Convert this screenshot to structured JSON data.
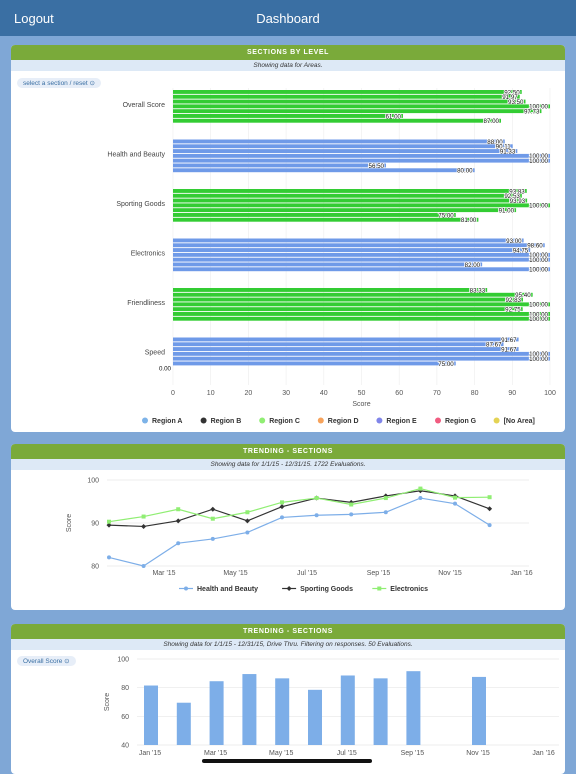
{
  "topbar": {
    "logout_label": "Logout",
    "title": "Dashboard"
  },
  "card1": {
    "header": "SECTIONS BY LEVEL",
    "subheader": "Showing data for Areas.",
    "select_label": "select a section / reset ⊙"
  },
  "card2": {
    "header": "TRENDING - SECTIONS",
    "subheader": "Showing data for 1/1/15 - 12/31/15. 1722 Evaluations."
  },
  "card3": {
    "header": "TRENDING - SECTIONS",
    "subheader": "Showing data for 1/1/15 - 12/31/15, Drive Thru. Filtering on responses. 50 Evaluations.",
    "select_label": "Overall Score ⊙"
  },
  "colors": {
    "green": "#33cc33",
    "blue": "#6f9ae8",
    "black": "#333333",
    "light_green": "#90ee73",
    "light_blue": "#7daee8"
  },
  "chart_data": [
    {
      "type": "bar",
      "orientation": "horizontal",
      "xlabel": "Score",
      "xlim": [
        0,
        100
      ],
      "xticks": [
        0,
        10,
        20,
        30,
        40,
        50,
        60,
        70,
        80,
        90,
        100
      ],
      "groups": [
        {
          "label": "Overall Score",
          "color": "#33cc33",
          "values": [
            92.5,
            91.97,
            93.5,
            100,
            97.73,
            61.0,
            87.0
          ],
          "labels": [
            "92.50",
            "91.97",
            "93.50",
            "100.00",
            "97.73",
            "61.00",
            "87.00"
          ]
        },
        {
          "label": "Health and Beauty",
          "color": "#6f9ae8",
          "values": [
            88.0,
            90.11,
            91.33,
            100,
            100,
            56.5,
            80.0
          ],
          "labels": [
            "88.00",
            "90.11",
            "91.33",
            "100.00",
            "100.00",
            "56.50",
            "80.00"
          ]
        },
        {
          "label": "Sporting Goods",
          "color": "#33cc33",
          "values": [
            93.83,
            92.53,
            93.93,
            100,
            91.0,
            75.0,
            81.0
          ],
          "labels": [
            "93.83",
            "92.53",
            "93.93",
            "100.00",
            "91.00",
            "75.00",
            "81.00"
          ]
        },
        {
          "label": "Electronics",
          "color": "#6f9ae8",
          "values": [
            93.0,
            98.6,
            94.75,
            100,
            100,
            82.0,
            100
          ],
          "labels": [
            "93.00",
            "98.60",
            "94.75",
            "100.00",
            "100.00",
            "82.00",
            "100.00"
          ]
        },
        {
          "label": "Friendliness",
          "color": "#33cc33",
          "values": [
            83.33,
            95.4,
            92.83,
            100,
            92.75,
            100,
            100
          ],
          "labels": [
            "83.33",
            "95.40",
            "92.83",
            "100.00",
            "92.75",
            "100.00",
            "100.00"
          ]
        },
        {
          "label": "Speed",
          "color": "#6f9ae8",
          "values": [
            91.67,
            87.67,
            91.67,
            100,
            100,
            75.0,
            0.0
          ],
          "labels": [
            "91.67",
            "87.67",
            "91.67",
            "100.00",
            "100.00",
            "75.00",
            "0.00"
          ]
        }
      ],
      "legend": [
        {
          "name": "Region A",
          "color": "#7db3e8"
        },
        {
          "name": "Region B",
          "color": "#333333"
        },
        {
          "name": "Region C",
          "color": "#90ee73"
        },
        {
          "name": "Region D",
          "color": "#f7a35c"
        },
        {
          "name": "Region E",
          "color": "#8085e9"
        },
        {
          "name": "Region G",
          "color": "#f15c80"
        },
        {
          "name": "[No Area]",
          "color": "#e4d354"
        }
      ]
    },
    {
      "type": "line",
      "ylabel": "Score",
      "ylim": [
        80,
        100
      ],
      "yticks": [
        80,
        90,
        100
      ],
      "xticks": [
        "Mar '15",
        "May '15",
        "Jul '15",
        "Sep '15",
        "Nov '15",
        "Jan '16"
      ],
      "series": [
        {
          "name": "Health and Beauty",
          "color": "#7daee8",
          "marker": "circle",
          "values": [
            82,
            80,
            85.3,
            86.3,
            87.8,
            91.3,
            91.8,
            92,
            92.5,
            95.8,
            94.5,
            89.5
          ]
        },
        {
          "name": "Sporting Goods",
          "color": "#333333",
          "marker": "diamond",
          "values": [
            89.5,
            89.2,
            90.5,
            93.2,
            90.5,
            93.8,
            95.8,
            94.8,
            96.3,
            97.5,
            96.3,
            93.3
          ]
        },
        {
          "name": "Electronics",
          "color": "#90ee73",
          "marker": "square",
          "values": [
            90.3,
            91.5,
            93.2,
            91,
            92.5,
            94.8,
            95.8,
            94.3,
            95.8,
            98,
            95.9,
            96
          ]
        }
      ]
    },
    {
      "type": "bar",
      "ylabel": "Score",
      "ylim": [
        40,
        100
      ],
      "yticks": [
        40,
        60,
        80,
        100
      ],
      "xticks": [
        "Jan '15",
        "Mar '15",
        "May '15",
        "Jul '15",
        "Sep '15",
        "Nov '15",
        "Jan '16"
      ],
      "values": [
        81.5,
        69.5,
        84.5,
        89.5,
        86.5,
        78.5,
        88.5,
        86.5,
        91.5,
        null,
        87.5,
        null
      ],
      "color": "#7daee8"
    }
  ]
}
